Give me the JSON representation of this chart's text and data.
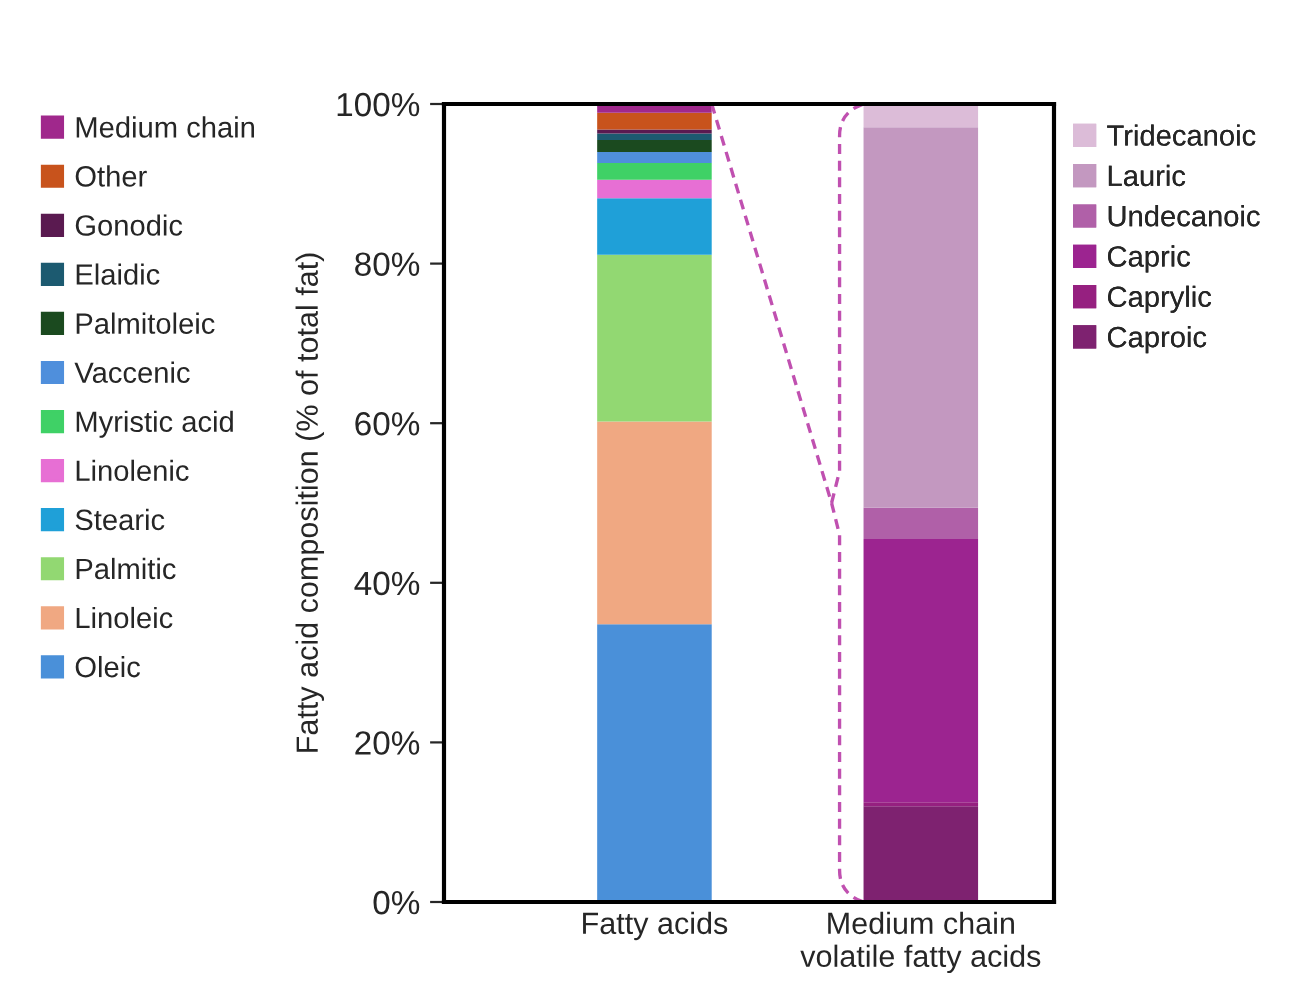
{
  "chart_data": {
    "type": "bar",
    "stacked": true,
    "ylabel": "Fatty acid composition (% of total fat)",
    "categories": [
      "Fatty acids",
      "Medium chain\nvolatile fatty acids"
    ],
    "ylim": [
      0,
      100
    ],
    "yticks": [
      {
        "value": 0,
        "label": "0%"
      },
      {
        "value": 20,
        "label": "20%"
      },
      {
        "value": 40,
        "label": "40%"
      },
      {
        "value": 60,
        "label": "60%"
      },
      {
        "value": 80,
        "label": "80%"
      },
      {
        "value": 100,
        "label": "100%"
      }
    ],
    "legend": "top left",
    "grid": false,
    "series": [
      {
        "name": "Oleic",
        "color": "#4a90d9",
        "values": [
          34.8,
          null
        ]
      },
      {
        "name": "Linoleic",
        "color": "#f0a882",
        "values": [
          25.4,
          null
        ]
      },
      {
        "name": "Palmitic",
        "color": "#92d872",
        "values": [
          20.9,
          null
        ]
      },
      {
        "name": "Stearic",
        "color": "#1fa0d8",
        "values": [
          7.1,
          null
        ]
      },
      {
        "name": "Linolenic",
        "color": "#e76fd4",
        "values": [
          2.3,
          null
        ]
      },
      {
        "name": "Myristic acid",
        "color": "#3fd166",
        "values": [
          2.1,
          null
        ]
      },
      {
        "name": "Vaccenic",
        "color": "#4f8fdc",
        "values": [
          1.4,
          null
        ]
      },
      {
        "name": "Palmitoleic",
        "color": "#1b4a1f",
        "values": [
          1.5,
          null
        ]
      },
      {
        "name": "Elaidic",
        "color": "#1c5a70",
        "values": [
          0.8,
          null
        ]
      },
      {
        "name": "Gonodic",
        "color": "#5a1a50",
        "values": [
          0.5,
          null
        ]
      },
      {
        "name": "Other",
        "color": "#c8531c",
        "values": [
          2.1,
          null
        ]
      },
      {
        "name": "Medium chain",
        "color": "#a0288c",
        "values": [
          1.1,
          null
        ]
      },
      {
        "name": "Caproic",
        "color": "#7e2270",
        "values": [
          null,
          12.0
        ]
      },
      {
        "name": "Caprylic",
        "color": "#962080",
        "values": [
          null,
          0.5
        ]
      },
      {
        "name": "Capric",
        "color": "#9c2490",
        "values": [
          null,
          33.0
        ]
      },
      {
        "name": "Undecanoic",
        "color": "#b060a8",
        "values": [
          null,
          3.9
        ]
      },
      {
        "name": "Lauric",
        "color": "#c398c0",
        "values": [
          null,
          47.7
        ]
      },
      {
        "name": "Tridecanoic",
        "color": "#dcbcd8",
        "values": [
          null,
          2.9
        ]
      }
    ]
  }
}
